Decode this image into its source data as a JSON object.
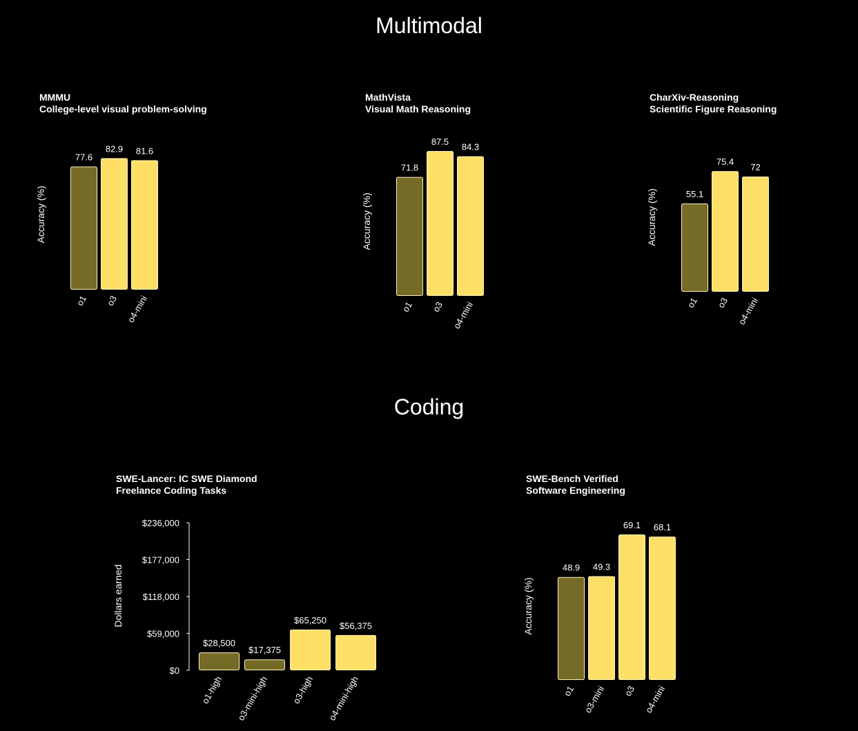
{
  "sections": {
    "multimodal": "Multimodal",
    "coding": "Coding"
  },
  "colors": {
    "background": "#000000",
    "bar_primary": "#ffe066",
    "bar_muted": "#756a26",
    "bar_outline": "#fff4c2",
    "text": "#ffffff"
  },
  "chart_data": [
    {
      "type": "bar",
      "title": "MMMU",
      "subtitle": "College-level visual problem-solving",
      "ylabel": "Accuracy (%)",
      "categories": [
        "o1",
        "o3",
        "o4-mini"
      ],
      "values": [
        77.6,
        82.9,
        81.6
      ],
      "value_labels": [
        "77.6",
        "82.9",
        "81.6"
      ],
      "muted": [
        true,
        false,
        false
      ],
      "ylim": [
        0,
        100
      ],
      "grid": false
    },
    {
      "type": "bar",
      "title": "MathVista",
      "subtitle": "Visual Math Reasoning",
      "ylabel": "Accuracy (%)",
      "categories": [
        "o1",
        "o3",
        "o4-mini"
      ],
      "values": [
        71.8,
        87.5,
        84.3
      ],
      "value_labels": [
        "71.8",
        "87.5",
        "84.3"
      ],
      "muted": [
        true,
        false,
        false
      ],
      "ylim": [
        0,
        100
      ],
      "grid": false
    },
    {
      "type": "bar",
      "title": "CharXiv-Reasoning",
      "subtitle": "Scientific Figure Reasoning",
      "ylabel": "Accuracy (%)",
      "categories": [
        "o1",
        "o3",
        "o4-mini"
      ],
      "values": [
        55.1,
        75.4,
        72
      ],
      "value_labels": [
        "55.1",
        "75.4",
        "72"
      ],
      "muted": [
        true,
        false,
        false
      ],
      "ylim": [
        0,
        100
      ],
      "grid": false
    },
    {
      "type": "bar",
      "title": "SWE-Lancer: IC SWE Diamond",
      "subtitle": "Freelance Coding Tasks",
      "ylabel": "Dollars earned",
      "categories": [
        "o1-high",
        "o3-mini-high",
        "o3-high",
        "o4-mini-high"
      ],
      "values": [
        28500,
        17375,
        65250,
        56375
      ],
      "value_labels": [
        "$28,500",
        "$17,375",
        "$65,250",
        "$56,375"
      ],
      "muted": [
        true,
        true,
        false,
        false
      ],
      "ylim": [
        0,
        236000
      ],
      "yticks": [
        0,
        59000,
        118000,
        177000,
        236000
      ],
      "ytick_labels": [
        "$0",
        "$59,000",
        "$118,000",
        "$177,000",
        "$236,000"
      ],
      "grid": false
    },
    {
      "type": "bar",
      "title": "SWE-Bench Verified",
      "subtitle": "Software Engineering",
      "ylabel": "Accuracy (%)",
      "categories": [
        "o1",
        "o3-mini",
        "o3",
        "o4-mini"
      ],
      "values": [
        48.9,
        49.3,
        69.1,
        68.1
      ],
      "value_labels": [
        "48.9",
        "49.3",
        "69.1",
        "68.1"
      ],
      "muted": [
        true,
        false,
        false,
        false
      ],
      "ylim": [
        0,
        75
      ],
      "grid": false
    }
  ]
}
